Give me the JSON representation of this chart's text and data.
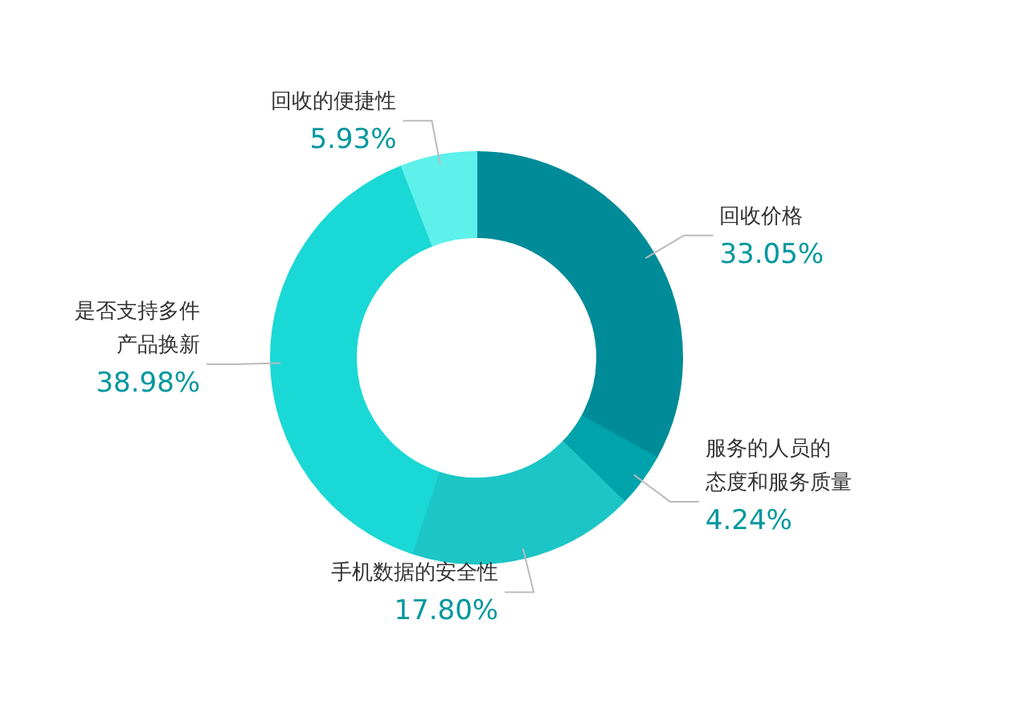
{
  "chart_data": {
    "type": "donut",
    "categories": [
      "回收价格",
      "服务的人员的态度和服务质量",
      "手机数据的安全性",
      "是否支持多件产品换新",
      "回收的便捷性"
    ],
    "values": [
      33.05,
      4.24,
      17.8,
      38.98,
      5.93
    ],
    "colors": [
      "#008b98",
      "#00a3ab",
      "#1cc6c6",
      "#1ad8d6",
      "#5ef0ea"
    ],
    "value_labels": [
      "33.05%",
      "4.24%",
      "17.80%",
      "38.98%",
      "5.93%"
    ]
  }
}
